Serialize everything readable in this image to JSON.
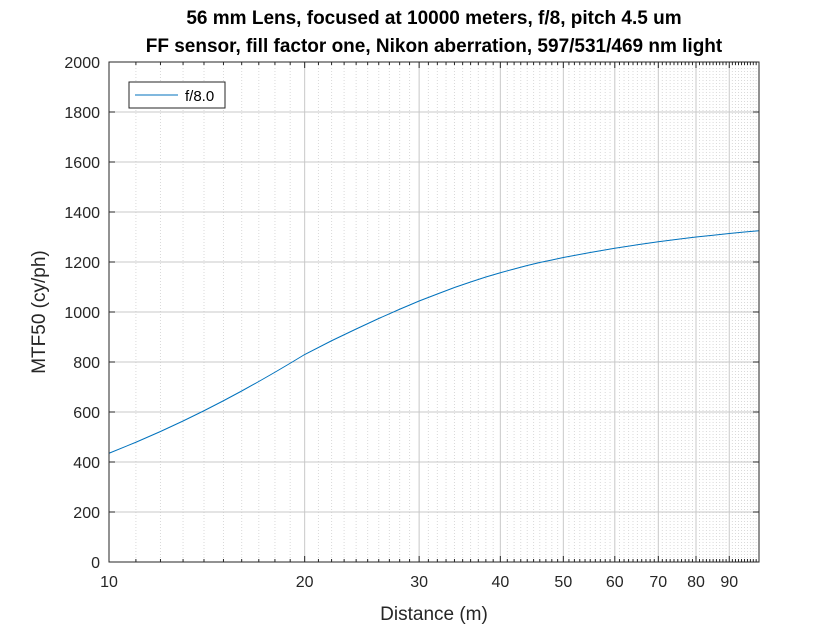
{
  "chart_data": {
    "type": "line",
    "title_lines": [
      "56 mm Lens, focused at 10000 meters, f/8, pitch 4.5 um",
      "FF sensor, fill factor one, Nikon aberration, 597/531/469 nm light"
    ],
    "xlabel": "Distance (m)",
    "ylabel": "MTF50 (cy/ph)",
    "x_scale": "log",
    "xlim": [
      10,
      100
    ],
    "ylim": [
      0,
      2000
    ],
    "x_ticks": [
      10,
      20,
      30,
      40,
      50,
      60,
      70,
      80,
      90
    ],
    "x_tick_labels": [
      "10",
      "20",
      "30",
      "40",
      "50",
      "60",
      "70",
      "80",
      "90"
    ],
    "y_ticks": [
      0,
      200,
      400,
      600,
      800,
      1000,
      1200,
      1400,
      1600,
      1800,
      2000
    ],
    "y_tick_labels": [
      "0",
      "200",
      "400",
      "600",
      "800",
      "1000",
      "1200",
      "1400",
      "1600",
      "1800",
      "2000"
    ],
    "grid": true,
    "legend_position": "top-left",
    "series": [
      {
        "name": "f/8.0",
        "color": "#0072BD",
        "x": [
          10,
          11,
          12,
          13,
          14,
          15,
          16,
          17,
          18,
          19,
          20,
          22,
          24,
          26,
          28,
          30,
          32,
          34,
          36,
          38,
          40,
          42,
          44,
          46,
          48,
          50,
          55,
          60,
          65,
          70,
          75,
          80,
          85,
          90,
          95,
          100
        ],
        "y": [
          435,
          479,
          522,
          564,
          605,
          645,
          684,
          722,
          759,
          795,
          830,
          885,
          932,
          974,
          1011,
          1044,
          1072,
          1098,
          1120,
          1140,
          1157,
          1172,
          1186,
          1198,
          1208,
          1218,
          1238,
          1255,
          1269,
          1281,
          1291,
          1300,
          1307,
          1314,
          1320,
          1325
        ]
      }
    ]
  }
}
